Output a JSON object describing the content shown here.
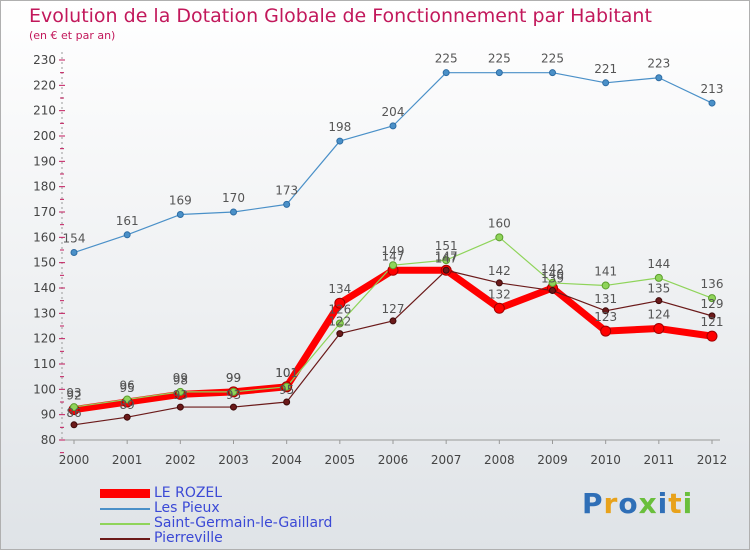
{
  "title": "Evolution de la Dotation Globale de Fonctionnement par Habitant",
  "subtitle": "(en € et par an)",
  "logo": "Proxiti",
  "chart_data": {
    "type": "line",
    "title": "Evolution de la Dotation Globale de Fonctionnement par Habitant",
    "subtitle": "(en € et par an)",
    "xlabel": "",
    "ylabel": "",
    "x": [
      2000,
      2001,
      2002,
      2003,
      2004,
      2005,
      2006,
      2007,
      2008,
      2009,
      2010,
      2011,
      2012
    ],
    "yticks": [
      80,
      90,
      100,
      110,
      120,
      130,
      140,
      150,
      160,
      170,
      180,
      190,
      200,
      210,
      220,
      230
    ],
    "ylim": [
      80,
      230
    ],
    "grid": false,
    "legend_position": "bottom-left",
    "series": [
      {
        "name": "Les Pieux",
        "color": "#4a90c8",
        "values": [
          154,
          161,
          169,
          170,
          173,
          198,
          204,
          225,
          225,
          225,
          221,
          223,
          213
        ]
      },
      {
        "name": "Saint-Germain-le-Gaillard",
        "color": "#8fd45a",
        "values": [
          93,
          96,
          99,
          99,
          101,
          126,
          149,
          151,
          160,
          142,
          141,
          144,
          136
        ]
      },
      {
        "name": "Pierreville",
        "color": "#6b1a1a",
        "values": [
          86,
          89,
          93,
          93,
          95,
          122,
          127,
          147,
          142,
          139,
          131,
          135,
          129
        ]
      },
      {
        "name": "LE ROZEL",
        "color": "#ff0000",
        "values": [
          92,
          95,
          98,
          99,
          101,
          134,
          147,
          147,
          132,
          140,
          123,
          124,
          121
        ]
      }
    ],
    "legend": [
      "LE ROZEL",
      "Les Pieux",
      "Saint-Germain-le-Gaillard",
      "Pierreville"
    ]
  }
}
